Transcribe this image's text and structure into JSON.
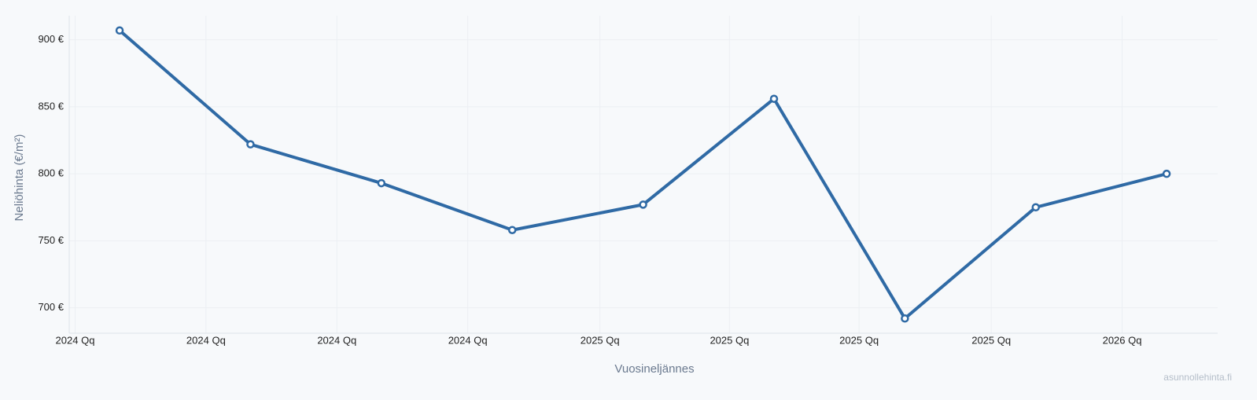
{
  "chart_data": {
    "type": "line",
    "x_label": "Vuosineljännes",
    "y_label": "Neliöhinta (€/m²)",
    "watermark": "asunnollehinta.fi",
    "x": [
      0,
      1,
      2,
      3,
      4,
      5,
      6,
      7,
      8
    ],
    "series": [
      {
        "name": "Neliöhinta",
        "color": "#2f6aa5",
        "values": [
          907,
          822,
          793,
          758,
          777,
          856,
          692,
          775,
          800
        ]
      }
    ],
    "xlim": [
      -0.385,
      8.39
    ],
    "xticks": [
      {
        "value": -0.34,
        "label": "2024 Qq"
      },
      {
        "value": 0.66,
        "label": "2024 Qq"
      },
      {
        "value": 1.66,
        "label": "2024 Qq"
      },
      {
        "value": 2.66,
        "label": "2024 Qq"
      },
      {
        "value": 3.67,
        "label": "2025 Qq"
      },
      {
        "value": 4.66,
        "label": "2025 Qq"
      },
      {
        "value": 5.65,
        "label": "2025 Qq"
      },
      {
        "value": 6.66,
        "label": "2025 Qq"
      },
      {
        "value": 7.66,
        "label": "2026 Qq"
      }
    ],
    "ylim": [
      681,
      918
    ],
    "yticks": [
      {
        "value": 700,
        "label": "700 €"
      },
      {
        "value": 750,
        "label": "750 €"
      },
      {
        "value": 800,
        "label": "800 €"
      },
      {
        "value": 850,
        "label": "850 €"
      },
      {
        "value": 900,
        "label": "900 €"
      }
    ],
    "grid": true
  }
}
